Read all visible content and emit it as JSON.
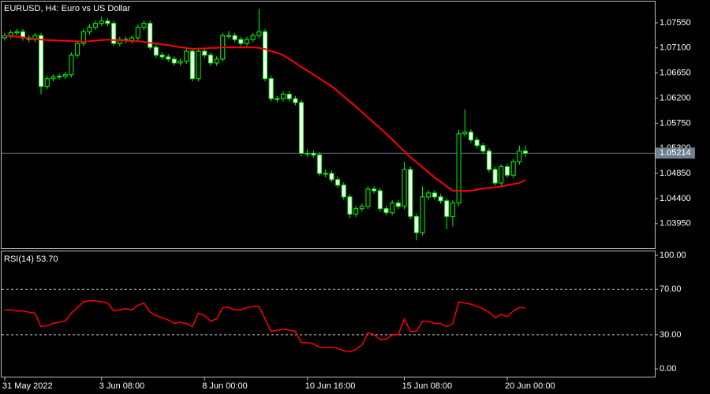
{
  "chart_data": [
    {
      "type": "candlestick",
      "title": "EURUSD, H4:  Euro vs US Dollar",
      "categories": [
        "31 May 2022",
        null,
        null,
        null,
        null,
        null,
        null,
        null,
        null,
        null,
        null,
        null,
        null,
        null,
        null,
        null,
        "3 Jun 08:00",
        null,
        null,
        null,
        null,
        null,
        null,
        null,
        null,
        null,
        null,
        null,
        null,
        null,
        null,
        null,
        null,
        "8 Jun 00:00",
        null,
        null,
        null,
        null,
        null,
        null,
        null,
        null,
        null,
        null,
        null,
        null,
        null,
        null,
        null,
        null,
        "10 Jun 16:00",
        null,
        null,
        null,
        null,
        null,
        null,
        null,
        null,
        null,
        null,
        null,
        null,
        null,
        null,
        null,
        "15 Jun 08:00",
        null,
        null,
        null,
        null,
        null,
        null,
        null,
        null,
        null,
        null,
        null,
        null,
        null,
        null,
        null,
        null,
        "20 Jun 00:00",
        null,
        null,
        null
      ],
      "open": [
        1.0728,
        1.0732,
        1.0737,
        1.0739,
        1.0728,
        1.0725,
        1.0732,
        1.0641,
        1.0655,
        1.0658,
        1.0659,
        1.0662,
        1.0697,
        1.0718,
        1.0739,
        1.0747,
        1.0754,
        1.0758,
        1.0754,
        1.0718,
        1.0725,
        1.0723,
        1.0728,
        1.0747,
        1.0754,
        1.0711,
        1.0697,
        1.0694,
        1.069,
        1.0683,
        1.0686,
        1.0704,
        1.0655,
        1.0704,
        1.0697,
        1.0683,
        1.069,
        1.0732,
        1.0732,
        1.0725,
        1.0718,
        1.0725,
        1.0732,
        1.0739,
        1.0655,
        1.0619,
        1.0619,
        1.0627,
        1.0619,
        1.0612,
        1.0521,
        1.0521,
        1.0518,
        1.0485,
        1.0485,
        1.0474,
        1.0464,
        1.0443,
        1.0412,
        1.0422,
        1.0426,
        1.0457,
        1.0454,
        1.0422,
        1.0415,
        1.0432,
        1.0426,
        1.0492,
        1.0408,
        1.0379,
        1.0443,
        1.045,
        1.0443,
        1.0436,
        1.0408,
        1.0432,
        1.0556,
        1.0559,
        1.0545,
        1.0535,
        1.0525,
        1.0492,
        1.0468,
        1.0497,
        1.0482,
        1.0506,
        1.0525
      ],
      "high": [
        1.0737,
        1.0742,
        1.0744,
        1.0744,
        1.0733,
        1.0737,
        1.0737,
        1.066,
        1.0663,
        1.0664,
        1.0667,
        1.0702,
        1.0723,
        1.0744,
        1.0752,
        1.0759,
        1.0766,
        1.0763,
        1.0759,
        1.073,
        1.073,
        1.0733,
        1.0752,
        1.0759,
        1.0759,
        1.0716,
        1.0702,
        1.0699,
        1.0695,
        1.0691,
        1.0709,
        1.0709,
        1.0709,
        1.0709,
        1.0702,
        1.0695,
        1.0737,
        1.074,
        1.0737,
        1.073,
        1.073,
        1.0737,
        1.078,
        1.0744,
        1.066,
        1.0624,
        1.0632,
        1.0632,
        1.0624,
        1.0617,
        1.0528,
        1.0526,
        1.0523,
        1.0492,
        1.049,
        1.0479,
        1.0469,
        1.0448,
        1.0427,
        1.0431,
        1.0462,
        1.0462,
        1.0459,
        1.0427,
        1.0437,
        1.0437,
        1.0506,
        1.0497,
        1.0413,
        1.0462,
        1.0455,
        1.0455,
        1.0448,
        1.0441,
        1.0437,
        1.0563,
        1.06,
        1.0564,
        1.055,
        1.054,
        1.053,
        1.0497,
        1.0502,
        1.0502,
        1.0511,
        1.0535,
        1.0535
      ],
      "low": [
        1.0723,
        1.0727,
        1.0732,
        1.0723,
        1.072,
        1.072,
        1.0627,
        1.0636,
        1.065,
        1.0653,
        1.0654,
        1.0657,
        1.0692,
        1.0713,
        1.0734,
        1.0742,
        1.0749,
        1.0749,
        1.0713,
        1.0713,
        1.0718,
        1.0718,
        1.0723,
        1.0742,
        1.0706,
        1.0692,
        1.0689,
        1.0685,
        1.0678,
        1.0678,
        1.0681,
        1.065,
        1.065,
        1.0692,
        1.0678,
        1.0678,
        1.0685,
        1.0727,
        1.072,
        1.0713,
        1.0713,
        1.072,
        1.0727,
        1.065,
        1.0614,
        1.0612,
        1.0614,
        1.0614,
        1.0607,
        1.0516,
        1.0514,
        1.0513,
        1.048,
        1.0478,
        1.0469,
        1.0459,
        1.0438,
        1.0405,
        1.0407,
        1.0417,
        1.0421,
        1.0449,
        1.0417,
        1.041,
        1.041,
        1.0421,
        1.0421,
        1.0403,
        1.0365,
        1.0374,
        1.0438,
        1.0438,
        1.0431,
        1.0385,
        1.039,
        1.0427,
        1.0551,
        1.054,
        1.053,
        1.052,
        1.0487,
        1.0463,
        1.046,
        1.0477,
        1.0477,
        1.0501,
        1.0515
      ],
      "close": [
        1.0732,
        1.0737,
        1.0739,
        1.0728,
        1.0725,
        1.0732,
        1.0641,
        1.0655,
        1.0658,
        1.0659,
        1.0662,
        1.0697,
        1.0718,
        1.0739,
        1.0747,
        1.0754,
        1.0758,
        1.0754,
        1.0718,
        1.0725,
        1.0723,
        1.0728,
        1.0747,
        1.0754,
        1.0711,
        1.0697,
        1.0694,
        1.069,
        1.0683,
        1.0686,
        1.0704,
        1.0655,
        1.0704,
        1.0697,
        1.0683,
        1.069,
        1.0732,
        1.0732,
        1.0725,
        1.0718,
        1.0725,
        1.0732,
        1.0739,
        1.0655,
        1.0619,
        1.0619,
        1.0627,
        1.0619,
        1.0612,
        1.0521,
        1.0521,
        1.0518,
        1.0485,
        1.0485,
        1.0474,
        1.0464,
        1.0443,
        1.0412,
        1.0422,
        1.0426,
        1.0457,
        1.0454,
        1.0422,
        1.0415,
        1.0432,
        1.0426,
        1.0492,
        1.0408,
        1.0379,
        1.0443,
        1.045,
        1.0443,
        1.0436,
        1.0408,
        1.0432,
        1.0556,
        1.0559,
        1.0545,
        1.0535,
        1.0525,
        1.0492,
        1.0468,
        1.0497,
        1.0482,
        1.0506,
        1.0525,
        1.05214
      ],
      "ma": {
        "color": "#ff0000",
        "values": [
          1.0732,
          1.0731,
          1.073,
          1.0729,
          1.0727,
          1.0726,
          1.0725,
          1.0724,
          1.0724,
          1.0723,
          1.0723,
          1.0722,
          1.0722,
          1.0721,
          1.0722,
          1.0723,
          1.0724,
          1.0725,
          1.0724,
          1.0724,
          1.0723,
          1.0722,
          1.0722,
          1.0721,
          1.0719,
          1.0718,
          1.0716,
          1.0715,
          1.0713,
          1.0711,
          1.071,
          1.0708,
          1.0709,
          1.0709,
          1.071,
          1.071,
          1.0711,
          1.0711,
          1.0711,
          1.0711,
          1.0711,
          1.0711,
          1.071,
          1.0708,
          1.0704,
          1.0701,
          1.0697,
          1.069,
          1.0683,
          1.0676,
          1.0669,
          1.0662,
          1.0655,
          1.0648,
          1.0641,
          1.0632,
          1.0623,
          1.0614,
          1.0605,
          1.0595,
          1.0585,
          1.0576,
          1.0566,
          1.0556,
          1.0546,
          1.0535,
          1.0525,
          1.0514,
          1.0505,
          1.0496,
          1.0487,
          1.0478,
          1.047,
          1.0462,
          1.0454,
          1.0454,
          1.0454,
          1.0454,
          1.0456,
          1.0458,
          1.0459,
          1.046,
          1.0462,
          1.0464,
          1.0466,
          1.0468,
          1.0473
        ]
      },
      "wick_color": "#00ff00",
      "bull_color": "#000000",
      "bear_color": "#ffffff",
      "current_price": 1.05214,
      "ylim": [
        1.0351,
        1.0793
      ],
      "yticks": [
        {
          "value": 1.0755,
          "label": "1.07550"
        },
        {
          "value": 1.071,
          "label": "1.07100"
        },
        {
          "value": 1.0665,
          "label": "1.06650"
        },
        {
          "value": 1.062,
          "label": "1.06200"
        },
        {
          "value": 1.0575,
          "label": "1.05750"
        },
        {
          "value": 1.053,
          "label": "1.05300"
        },
        {
          "value": 1.0485,
          "label": "1.04850"
        },
        {
          "value": 1.044,
          "label": "1.04400"
        },
        {
          "value": 1.0395,
          "label": "1.03950"
        }
      ]
    },
    {
      "type": "line",
      "title": "RSI(14) 53.70",
      "color": "#ff0000",
      "values": [
        52,
        52,
        51,
        51,
        50,
        49,
        37,
        38,
        40,
        41,
        42,
        49,
        54,
        59,
        60,
        60,
        59,
        58,
        51,
        52,
        53,
        52,
        56,
        58,
        50,
        47,
        45,
        43,
        40,
        41,
        40,
        37,
        49,
        47,
        42,
        44,
        54,
        54,
        52,
        52,
        54,
        55,
        55,
        44,
        33,
        34,
        35,
        34,
        33,
        23,
        23,
        22,
        19,
        19,
        19,
        18,
        16,
        15,
        17,
        21,
        32,
        30,
        26,
        26,
        30,
        30,
        44,
        33,
        33,
        42,
        42,
        40,
        40,
        37,
        40,
        59,
        58,
        57,
        55,
        53,
        50,
        45,
        48,
        46,
        51,
        54,
        53.7
      ],
      "ylim": [
        -6.9,
        104.2
      ],
      "yticks": [
        {
          "value": 100,
          "label": "100.00"
        },
        {
          "value": 70,
          "label": "70.00"
        },
        {
          "value": 30,
          "label": "30.00"
        },
        {
          "value": 0,
          "label": "0.00"
        }
      ],
      "levels": [
        70,
        30
      ]
    }
  ]
}
